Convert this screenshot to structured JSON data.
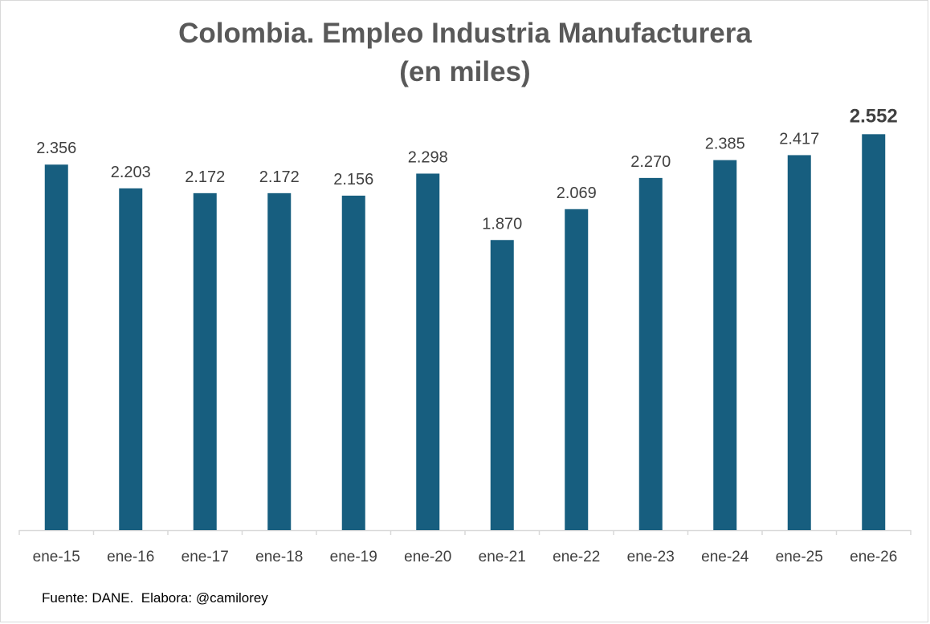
{
  "chart_data": {
    "type": "bar",
    "title_line1": "Colombia. Empleo Industria Manufacturera",
    "title_line2": "(en miles)",
    "categories": [
      "ene-15",
      "ene-16",
      "ene-17",
      "ene-18",
      "ene-19",
      "ene-20",
      "ene-21",
      "ene-22",
      "ene-23",
      "ene-24",
      "ene-25",
      "ene-26"
    ],
    "values": [
      2356,
      2203,
      2172,
      2172,
      2156,
      2298,
      1870,
      2069,
      2270,
      2385,
      2417,
      2552
    ],
    "value_labels": [
      "2.356",
      "2.203",
      "2.172",
      "2.172",
      "2.156",
      "2.298",
      "1.870",
      "2.069",
      "2.270",
      "2.385",
      "2.417",
      "2.552"
    ],
    "highlighted_label_index": 11,
    "xlabel": "",
    "ylabel": "",
    "ylim": [
      0,
      2900
    ],
    "y_axis_visible": false,
    "grid": false,
    "legend": "none",
    "bar_color": "#175e7f",
    "source": "Fuente: DANE.  Elabora: @camilorey"
  }
}
